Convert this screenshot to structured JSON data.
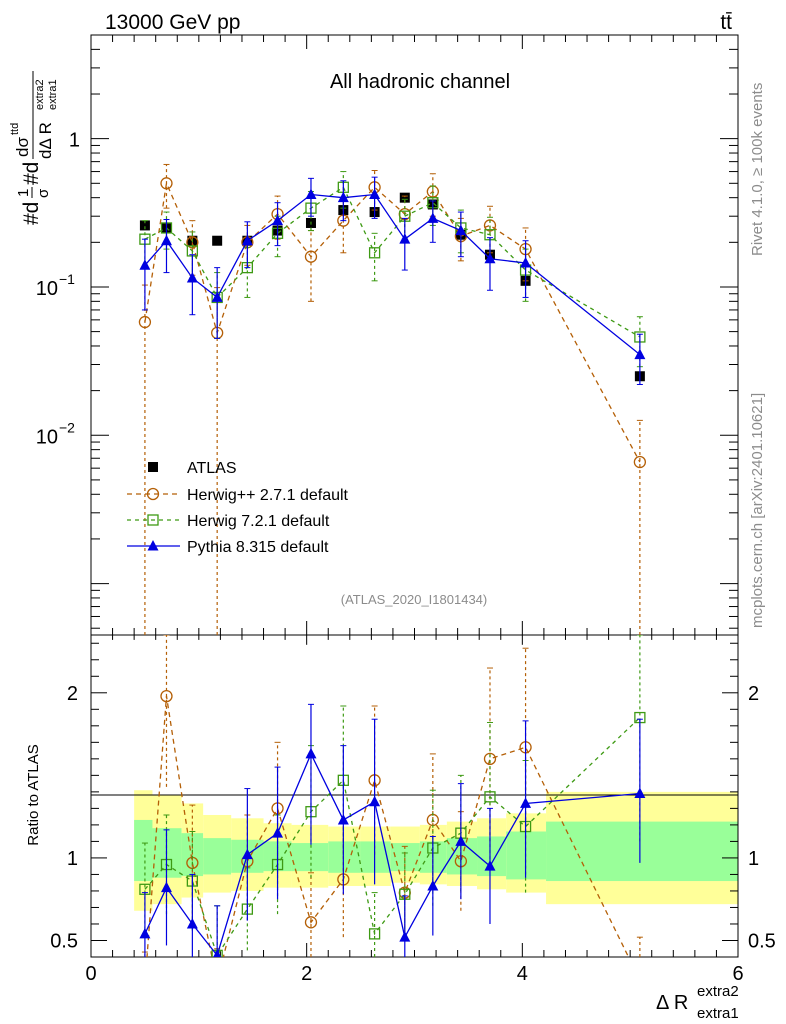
{
  "header": {
    "energy_label": "13000 GeV pp",
    "process_label": "tt̄"
  },
  "side_text": {
    "rivet": "Rivet 4.1.0, ≥ 100k events",
    "source": "mcplots.cern.ch [arXiv:2401.10621]"
  },
  "chart_data": {
    "type": "line",
    "title": "All hadronic channel",
    "analysis_id": "(ATLAS_2020_I1801434)",
    "xlim": [
      0,
      6
    ],
    "x_ticks": [
      "0",
      "2",
      "4",
      "6"
    ],
    "xlabel": {
      "base": "Δ R",
      "sup": "extra2",
      "sub": "extra1"
    },
    "main_panel": {
      "yscale": "log",
      "ylim": [
        0.00045,
        5.0
      ],
      "y_ticks": [
        {
          "value": 0.01,
          "base": "10",
          "exp": "−2"
        },
        {
          "value": 0.1,
          "base": "10",
          "exp": "−1"
        },
        {
          "value": 1,
          "base": "1",
          "exp": ""
        }
      ],
      "ylabel_parts": [
        "#d",
        "1",
        "σ",
        "#d",
        "dσ",
        "ttd",
        "dΔ R",
        "extra1",
        "extra2"
      ]
    },
    "ratio_panel": {
      "ylabel": "Ratio to ATLAS",
      "ylim": [
        0.4,
        2.35
      ],
      "y_ticks": [
        "0.5",
        "1",
        "2"
      ],
      "y_tick_values": [
        0.5,
        1,
        2
      ],
      "bands": [
        {
          "xlo": 0.4,
          "xhi": 0.57,
          "g_lo": 0.86,
          "g_hi": 1.23,
          "y_lo": 0.68,
          "y_hi": 1.41
        },
        {
          "xlo": 0.57,
          "xhi": 0.84,
          "g_lo": 0.88,
          "g_hi": 1.18,
          "y_lo": 0.72,
          "y_hi": 1.38
        },
        {
          "xlo": 0.84,
          "xhi": 1.04,
          "g_lo": 0.89,
          "g_hi": 1.15,
          "y_lo": 0.76,
          "y_hi": 1.33
        },
        {
          "xlo": 1.04,
          "xhi": 1.3,
          "g_lo": 0.9,
          "g_hi": 1.12,
          "y_lo": 0.79,
          "y_hi": 1.26
        },
        {
          "xlo": 1.3,
          "xhi": 1.6,
          "g_lo": 0.91,
          "g_hi": 1.11,
          "y_lo": 0.8,
          "y_hi": 1.24
        },
        {
          "xlo": 1.6,
          "xhi": 1.86,
          "g_lo": 0.92,
          "g_hi": 1.1,
          "y_lo": 0.82,
          "y_hi": 1.21
        },
        {
          "xlo": 1.86,
          "xhi": 2.2,
          "g_lo": 0.92,
          "g_hi": 1.09,
          "y_lo": 0.82,
          "y_hi": 1.2
        },
        {
          "xlo": 2.2,
          "xhi": 2.5,
          "g_lo": 0.91,
          "g_hi": 1.1,
          "y_lo": 0.83,
          "y_hi": 1.19
        },
        {
          "xlo": 2.5,
          "xhi": 2.78,
          "g_lo": 0.91,
          "g_hi": 1.1,
          "y_lo": 0.83,
          "y_hi": 1.19
        },
        {
          "xlo": 2.78,
          "xhi": 3.05,
          "g_lo": 0.92,
          "g_hi": 1.09,
          "y_lo": 0.85,
          "y_hi": 1.19
        },
        {
          "xlo": 3.05,
          "xhi": 3.3,
          "g_lo": 0.91,
          "g_hi": 1.1,
          "y_lo": 0.84,
          "y_hi": 1.2
        },
        {
          "xlo": 3.3,
          "xhi": 3.58,
          "g_lo": 0.9,
          "g_hi": 1.12,
          "y_lo": 0.83,
          "y_hi": 1.22
        },
        {
          "xlo": 3.58,
          "xhi": 3.85,
          "g_lo": 0.89,
          "g_hi": 1.13,
          "y_lo": 0.81,
          "y_hi": 1.24
        },
        {
          "xlo": 3.85,
          "xhi": 4.22,
          "g_lo": 0.87,
          "g_hi": 1.16,
          "y_lo": 0.79,
          "y_hi": 1.27
        },
        {
          "xlo": 4.22,
          "xhi": 6.0,
          "g_lo": 0.86,
          "g_hi": 1.22,
          "y_lo": 0.72,
          "y_hi": 1.4
        }
      ]
    },
    "series": [
      {
        "name": "ATLAS",
        "role": "data",
        "marker": "square",
        "color": "#000000",
        "x": [
          0.5,
          0.7,
          0.94,
          1.17,
          1.45,
          1.73,
          2.04,
          2.34,
          2.63,
          2.91,
          3.17,
          3.43,
          3.7,
          4.03,
          5.09
        ],
        "y": [
          0.26,
          0.25,
          0.205,
          0.205,
          0.205,
          0.24,
          0.27,
          0.33,
          0.32,
          0.4,
          0.36,
          0.225,
          0.165,
          0.11,
          0.025
        ]
      },
      {
        "name": "Herwig++ 2.7.1 default",
        "marker": "circle",
        "color": "#b45f06",
        "dash": "5,4",
        "x": [
          0.5,
          0.7,
          0.94,
          1.17,
          1.45,
          1.73,
          2.04,
          2.34,
          2.63,
          2.91,
          3.17,
          3.43,
          3.7,
          4.03,
          5.09
        ],
        "y": [
          0.058,
          0.5,
          0.2,
          0.049,
          0.2,
          0.31,
          0.16,
          0.28,
          0.47,
          0.31,
          0.44,
          0.22,
          0.26,
          0.18,
          0.0066
        ],
        "err_lo": [
          0.058,
          0.16,
          0.08,
          0.049,
          0.06,
          0.1,
          0.08,
          0.11,
          0.14,
          0.1,
          0.14,
          0.07,
          0.09,
          0.07,
          0.0066
        ],
        "err_hi": [
          0.045,
          0.17,
          0.08,
          0.05,
          0.06,
          0.1,
          0.08,
          0.11,
          0.14,
          0.1,
          0.14,
          0.07,
          0.09,
          0.07,
          0.006
        ],
        "ratio": [
          0.23,
          1.98,
          0.97,
          0.25,
          0.98,
          1.3,
          0.61,
          0.87,
          1.47,
          0.79,
          1.23,
          0.98,
          1.6,
          1.67,
          0.26
        ],
        "ratio_err_lo": [
          0.23,
          0.55,
          0.35,
          0.22,
          0.28,
          0.4,
          0.3,
          0.35,
          0.45,
          0.28,
          0.4,
          0.3,
          0.5,
          0.55,
          0.26
        ],
        "ratio_err_hi": [
          0.2,
          0.55,
          0.35,
          0.2,
          0.28,
          0.4,
          0.3,
          0.35,
          0.45,
          0.28,
          0.4,
          0.3,
          0.55,
          0.6,
          0.26
        ]
      },
      {
        "name": "Herwig 7.2.1 default",
        "marker": "open-square",
        "color": "#3e9a14",
        "dash": "4,4",
        "x": [
          0.5,
          0.7,
          0.94,
          1.17,
          1.45,
          1.73,
          2.04,
          2.34,
          2.63,
          2.91,
          3.17,
          3.43,
          3.7,
          4.03,
          5.09
        ],
        "y": [
          0.21,
          0.25,
          0.175,
          0.085,
          0.135,
          0.23,
          0.34,
          0.47,
          0.17,
          0.3,
          0.37,
          0.25,
          0.225,
          0.13,
          0.046
        ],
        "err_lo": [
          0.07,
          0.07,
          0.06,
          0.04,
          0.05,
          0.07,
          0.1,
          0.13,
          0.06,
          0.09,
          0.11,
          0.08,
          0.07,
          0.05,
          0.017
        ],
        "err_hi": [
          0.07,
          0.07,
          0.06,
          0.04,
          0.05,
          0.07,
          0.1,
          0.13,
          0.06,
          0.09,
          0.11,
          0.08,
          0.07,
          0.05,
          0.017
        ],
        "ratio": [
          0.81,
          0.96,
          0.86,
          0.41,
          0.69,
          0.96,
          1.28,
          1.47,
          0.54,
          0.78,
          1.06,
          1.15,
          1.37,
          1.19,
          1.85
        ],
        "ratio_err_lo": [
          0.28,
          0.3,
          0.3,
          0.3,
          0.25,
          0.3,
          0.4,
          0.45,
          0.2,
          0.25,
          0.35,
          0.35,
          0.45,
          0.4,
          0.75
        ],
        "ratio_err_hi": [
          0.28,
          0.3,
          0.3,
          0.3,
          0.25,
          0.3,
          0.4,
          0.45,
          0.25,
          0.25,
          0.35,
          0.35,
          0.45,
          0.4,
          0.75
        ]
      },
      {
        "name": "Pythia 8.315 default",
        "marker": "triangle",
        "color": "#0000e0",
        "dash": "",
        "x": [
          0.5,
          0.7,
          0.94,
          1.17,
          1.45,
          1.73,
          2.04,
          2.34,
          2.63,
          2.91,
          3.17,
          3.43,
          3.7,
          4.03,
          5.09
        ],
        "y": [
          0.14,
          0.205,
          0.115,
          0.085,
          0.205,
          0.28,
          0.42,
          0.4,
          0.42,
          0.21,
          0.29,
          0.24,
          0.155,
          0.145,
          0.035
        ],
        "err_lo": [
          0.07,
          0.08,
          0.05,
          0.04,
          0.07,
          0.09,
          0.12,
          0.12,
          0.13,
          0.08,
          0.09,
          0.08,
          0.06,
          0.06,
          0.013
        ],
        "err_hi": [
          0.07,
          0.08,
          0.05,
          0.05,
          0.07,
          0.09,
          0.12,
          0.12,
          0.13,
          0.08,
          0.09,
          0.08,
          0.06,
          0.06,
          0.013
        ],
        "ratio": [
          0.54,
          0.82,
          0.6,
          0.41,
          1.02,
          1.15,
          1.63,
          1.23,
          1.34,
          0.52,
          0.83,
          1.1,
          0.95,
          1.33,
          1.39
        ],
        "ratio_err_lo": [
          0.25,
          0.35,
          0.3,
          0.3,
          0.4,
          0.4,
          0.55,
          0.45,
          0.5,
          0.25,
          0.3,
          0.35,
          0.35,
          0.45,
          0.42
        ],
        "ratio_err_hi": [
          0.25,
          0.35,
          0.3,
          0.3,
          0.4,
          0.4,
          0.3,
          0.45,
          0.5,
          0.25,
          0.3,
          0.35,
          0.35,
          0.5,
          0.45
        ]
      }
    ]
  }
}
